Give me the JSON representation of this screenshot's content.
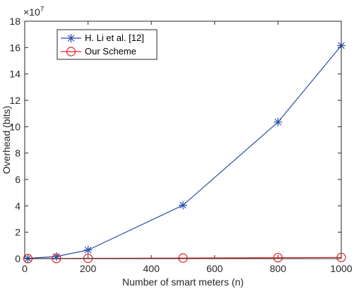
{
  "chart_data": {
    "type": "line",
    "xlabel": "Number of smart meters (n)",
    "ylabel": "Overhead (bits)",
    "exponent_label": "×10",
    "exponent_power": "7",
    "xlim": [
      0,
      1000
    ],
    "ylim": [
      0,
      18
    ],
    "xticks": [
      0,
      200,
      400,
      600,
      800,
      1000
    ],
    "yticks": [
      0,
      2,
      4,
      6,
      8,
      10,
      12,
      14,
      16,
      18
    ],
    "grid": false,
    "legend_position": "top-left",
    "series": [
      {
        "name": "H. Li et al. [12]",
        "color": "#2a50a8",
        "marker": "asterisk",
        "x": [
          10,
          100,
          200,
          500,
          800,
          1000
        ],
        "y": [
          0.02,
          0.16,
          0.65,
          4.05,
          10.35,
          16.15
        ]
      },
      {
        "name": "Our Scheme",
        "color": "#e02020",
        "marker": "circle",
        "x": [
          10,
          100,
          200,
          500,
          800,
          1000
        ],
        "y": [
          0.0,
          0.01,
          0.02,
          0.04,
          0.07,
          0.09
        ]
      }
    ]
  }
}
